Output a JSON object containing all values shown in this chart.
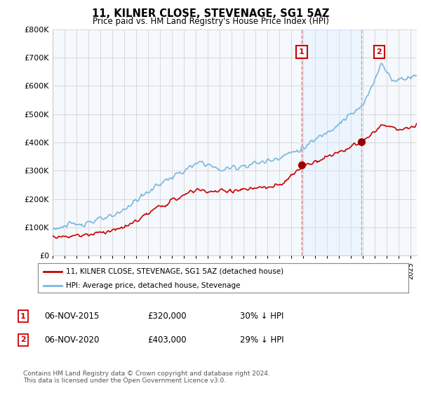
{
  "title": "11, KILNER CLOSE, STEVENAGE, SG1 5AZ",
  "subtitle": "Price paid vs. HM Land Registry's House Price Index (HPI)",
  "ylim": [
    0,
    800000
  ],
  "xlim_start": 1995,
  "xlim_end": 2025.5,
  "hpi_color": "#7ab8e0",
  "price_color": "#cc0000",
  "vline1_color": "#e06060",
  "vline2_color": "#aaaaaa",
  "shade_color": "#ddeeff",
  "sale1_x": 2015.85,
  "sale1_y": 320000,
  "sale2_x": 2020.85,
  "sale2_y": 403000,
  "legend_label1": "11, KILNER CLOSE, STEVENAGE, SG1 5AZ (detached house)",
  "legend_label2": "HPI: Average price, detached house, Stevenage",
  "table_rows": [
    {
      "num": "1",
      "date": "06-NOV-2015",
      "price": "£320,000",
      "hpi": "30% ↓ HPI"
    },
    {
      "num": "2",
      "date": "06-NOV-2020",
      "price": "£403,000",
      "hpi": "29% ↓ HPI"
    }
  ],
  "footnote": "Contains HM Land Registry data © Crown copyright and database right 2024.\nThis data is licensed under the Open Government Licence v3.0.",
  "background_color": "#f5f8fc"
}
